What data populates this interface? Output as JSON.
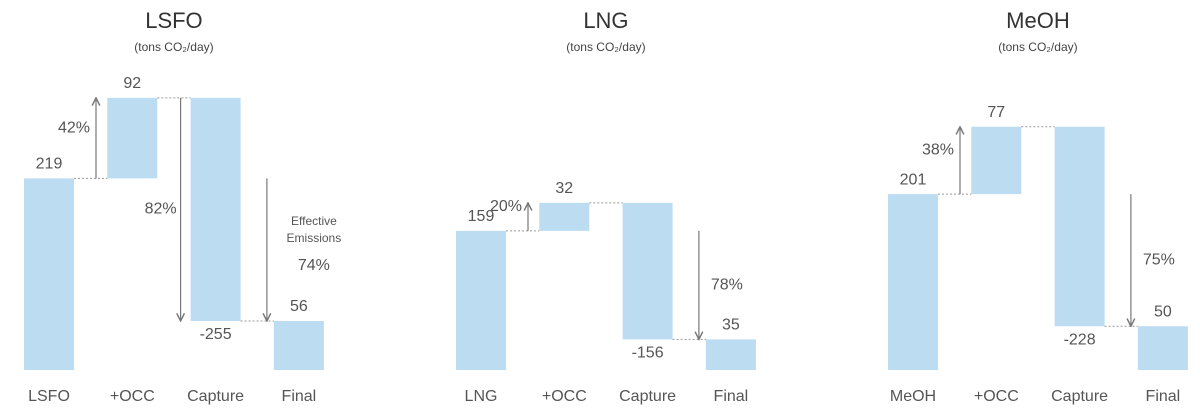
{
  "chart_data": [
    {
      "type": "waterfall",
      "title": "LSFO",
      "subtitle": "(tons CO₂/day)",
      "categories": [
        "LSFO",
        "+OCC",
        "Capture",
        "Final"
      ],
      "values": [
        219,
        92,
        -255,
        56
      ],
      "color": "#bcdcf2",
      "ylim": [
        0,
        320
      ],
      "occ_increase": "42%",
      "capture_share": "82%",
      "effective": "74%",
      "effective_label": [
        "Effective",
        "Emissions"
      ]
    },
    {
      "type": "waterfall",
      "title": "LNG",
      "subtitle": "(tons CO₂/day)",
      "categories": [
        "LNG",
        "+OCC",
        "Capture",
        "Final"
      ],
      "values": [
        159,
        32,
        -156,
        35
      ],
      "color": "#bcdcf2",
      "ylim": [
        0,
        320
      ],
      "occ_increase": "20%",
      "effective": "78%"
    },
    {
      "type": "waterfall",
      "title": "MeOH",
      "subtitle": "(tons CO₂/day)",
      "categories": [
        "MeOH",
        "+OCC",
        "Capture",
        "Final"
      ],
      "values": [
        201,
        77,
        -228,
        50
      ],
      "color": "#bcdcf2",
      "ylim": [
        0,
        320
      ],
      "occ_increase": "38%",
      "effective": "75%"
    }
  ]
}
